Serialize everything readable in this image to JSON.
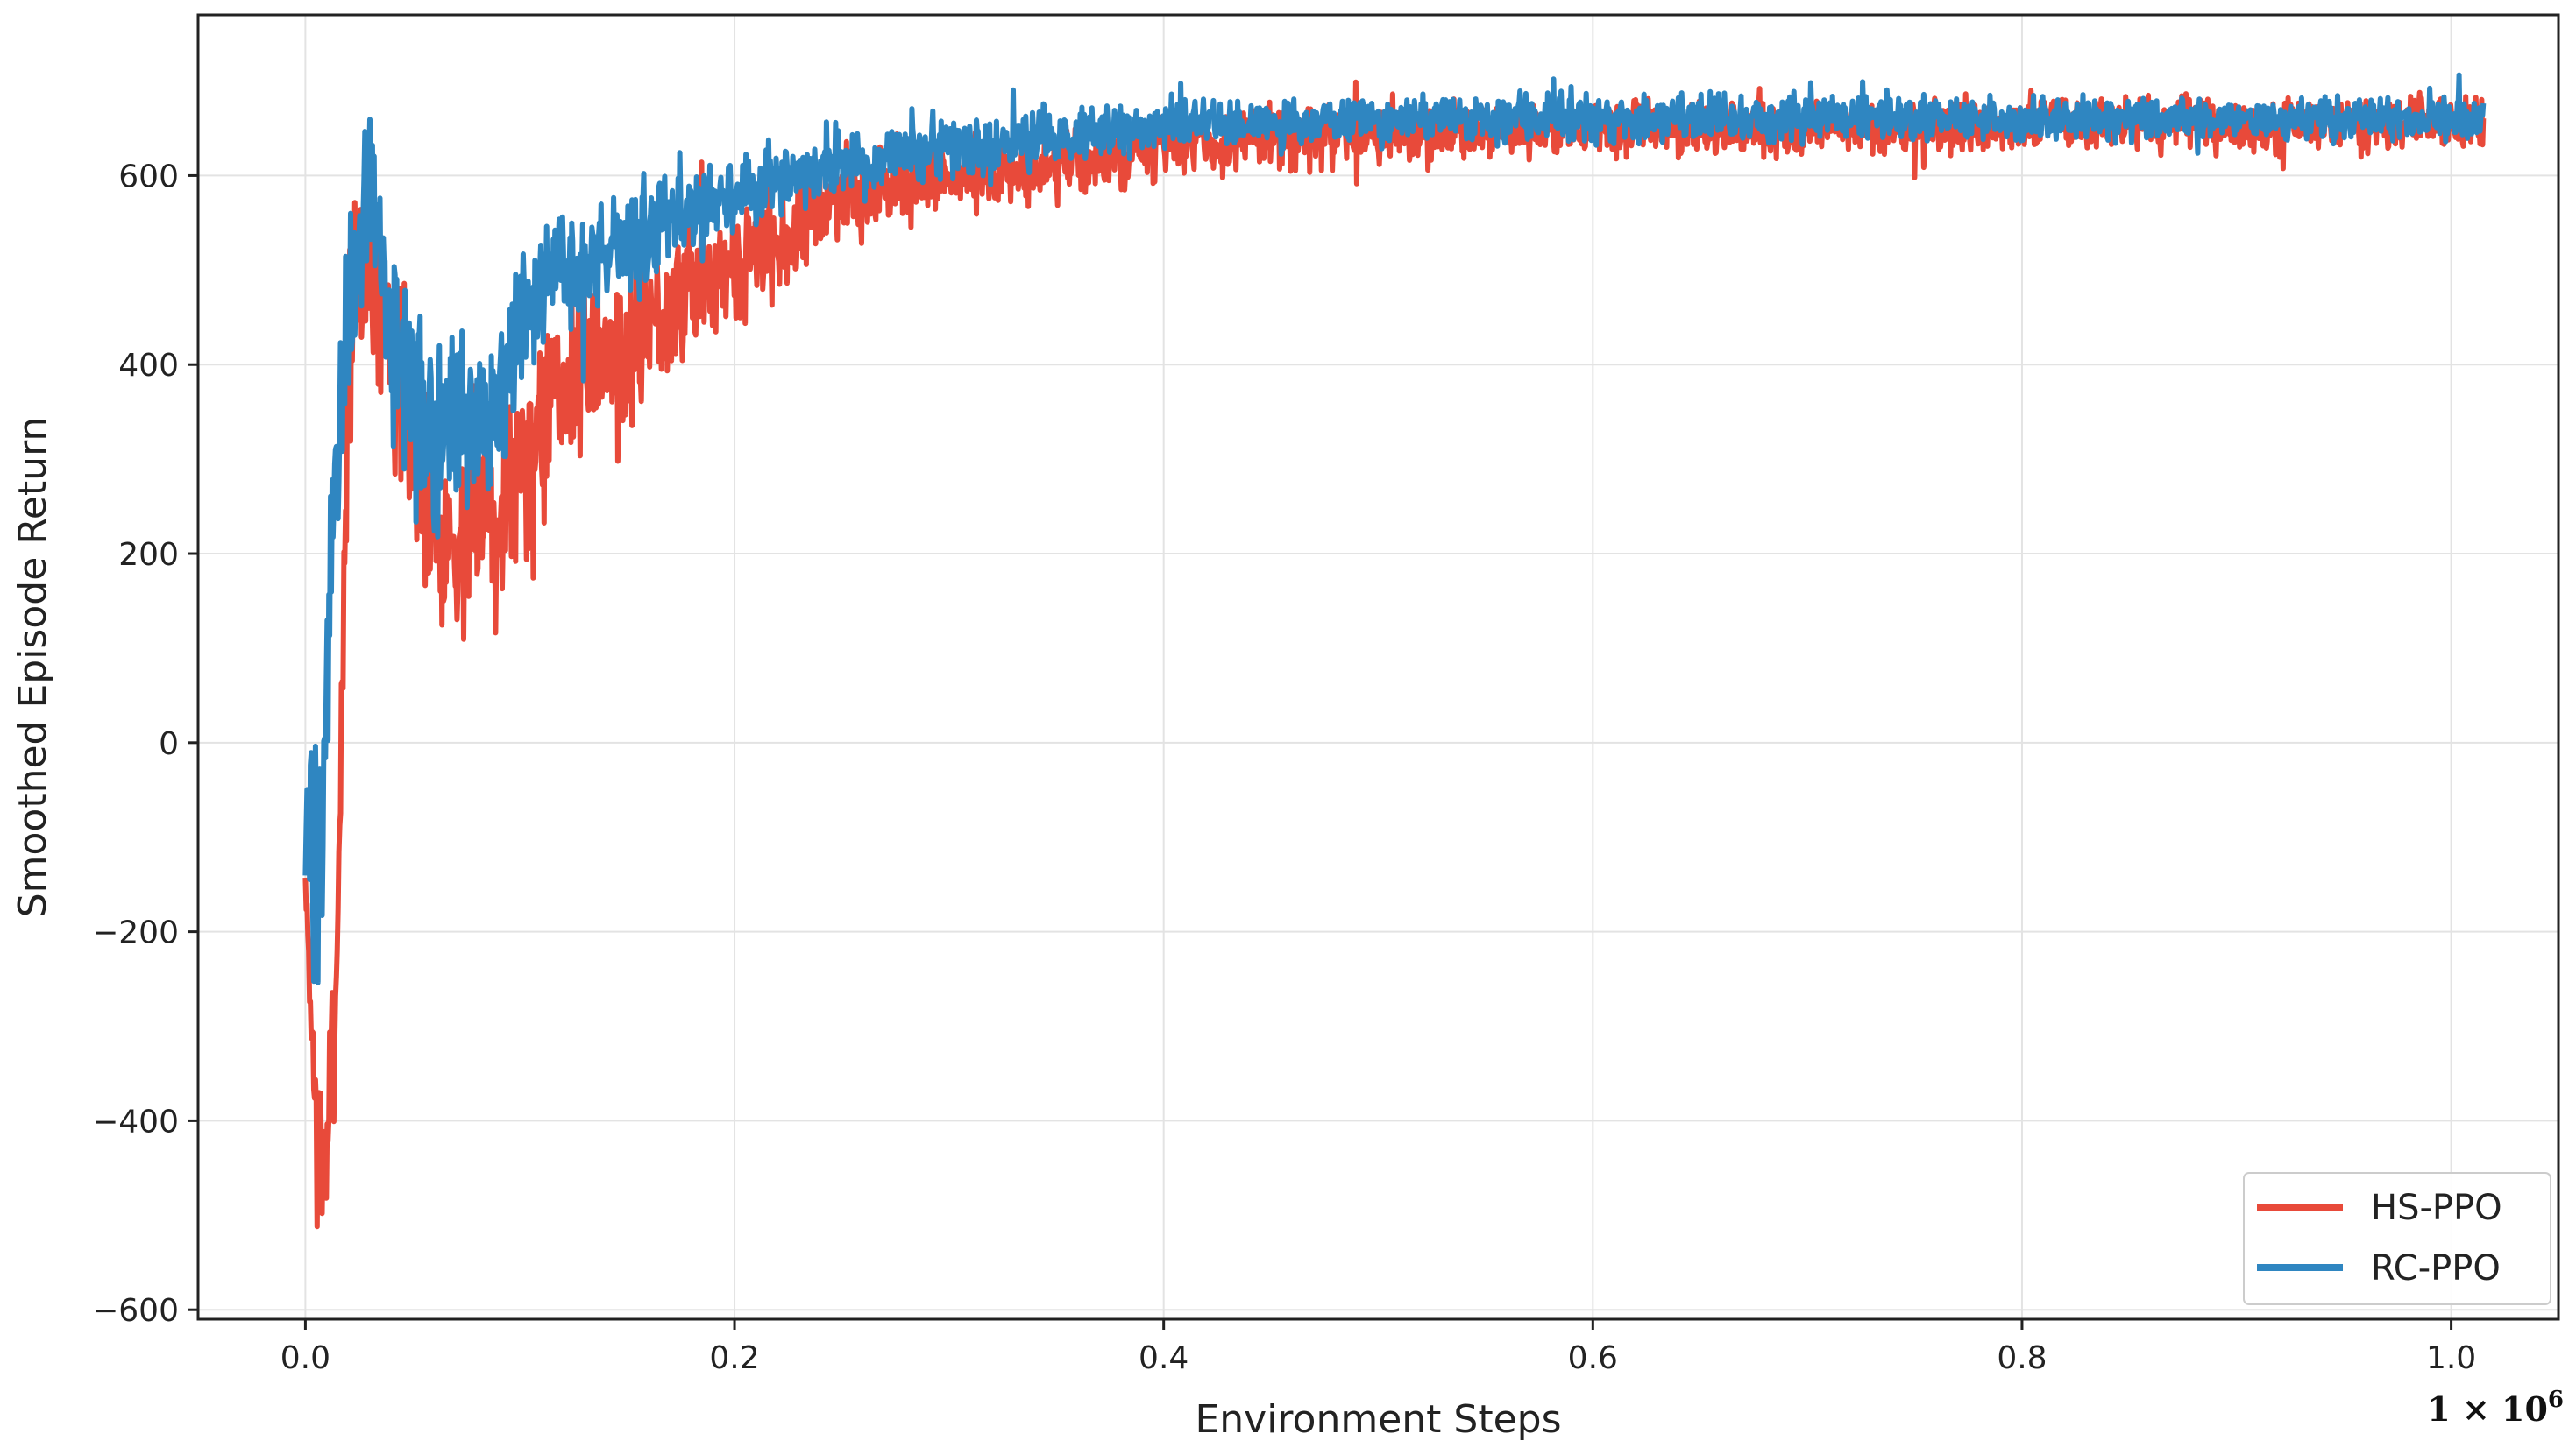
{
  "chart_data": {
    "type": "line",
    "title": "",
    "xlabel": "Environment Steps",
    "ylabel": "Smoothed Episode Return",
    "x_multiplier_label": "1 × 10",
    "x_multiplier_exponent": "6",
    "xlim": [
      -0.05,
      1.05
    ],
    "ylim": [
      -610,
      770
    ],
    "x_ticks": [
      0.0,
      0.2,
      0.4,
      0.6,
      0.8,
      1.0
    ],
    "x_tick_labels": [
      "0.0",
      "0.2",
      "0.4",
      "0.6",
      "0.8",
      "1.0"
    ],
    "y_ticks": [
      -600,
      -400,
      -200,
      0,
      200,
      400,
      600
    ],
    "y_tick_labels": [
      "−600",
      "−400",
      "−200",
      "0",
      "200",
      "400",
      "600"
    ],
    "grid": true,
    "legend_position": "lower-right",
    "series": [
      {
        "name": "HS-PPO",
        "color": "#e84a3a",
        "x": [
          0.0,
          0.005,
          0.01,
          0.015,
          0.02,
          0.025,
          0.03,
          0.035,
          0.04,
          0.05,
          0.06,
          0.07,
          0.08,
          0.09,
          0.1,
          0.11,
          0.12,
          0.13,
          0.14,
          0.15,
          0.16,
          0.18,
          0.2,
          0.22,
          0.25,
          0.3,
          0.35,
          0.4,
          0.45,
          0.5,
          0.6,
          0.7,
          0.8,
          0.9,
          1.0,
          1.015
        ],
        "y": [
          -150,
          -400,
          -440,
          -200,
          420,
          500,
          520,
          460,
          430,
          300,
          250,
          200,
          260,
          250,
          300,
          350,
          380,
          400,
          420,
          400,
          450,
          480,
          500,
          530,
          580,
          600,
          610,
          630,
          640,
          645,
          650,
          650,
          655,
          655,
          655,
          655
        ],
        "band": [
          40,
          120,
          120,
          140,
          150,
          150,
          150,
          150,
          150,
          150,
          160,
          160,
          160,
          160,
          150,
          150,
          140,
          140,
          130,
          130,
          120,
          100,
          90,
          80,
          70,
          60,
          55,
          50,
          45,
          45,
          40,
          40,
          40,
          40,
          40,
          40
        ]
      },
      {
        "name": "RC-PPO",
        "color": "#2f86c1",
        "x": [
          0.0,
          0.005,
          0.01,
          0.015,
          0.02,
          0.025,
          0.03,
          0.035,
          0.04,
          0.05,
          0.06,
          0.07,
          0.08,
          0.09,
          0.1,
          0.11,
          0.12,
          0.13,
          0.14,
          0.15,
          0.16,
          0.18,
          0.2,
          0.22,
          0.25,
          0.3,
          0.35,
          0.4,
          0.45,
          0.5,
          0.6,
          0.7,
          0.8,
          0.9,
          1.0,
          1.015
        ],
        "y": [
          -100,
          -150,
          50,
          300,
          450,
          550,
          580,
          520,
          420,
          380,
          330,
          350,
          350,
          380,
          430,
          480,
          500,
          500,
          520,
          520,
          540,
          560,
          580,
          600,
          610,
          630,
          640,
          655,
          655,
          660,
          660,
          660,
          660,
          660,
          660,
          660
        ],
        "band": [
          160,
          180,
          160,
          150,
          150,
          120,
          110,
          120,
          130,
          140,
          150,
          150,
          140,
          130,
          120,
          110,
          100,
          90,
          90,
          80,
          80,
          70,
          60,
          55,
          50,
          45,
          40,
          40,
          35,
          35,
          35,
          35,
          30,
          30,
          30,
          30
        ]
      }
    ]
  }
}
